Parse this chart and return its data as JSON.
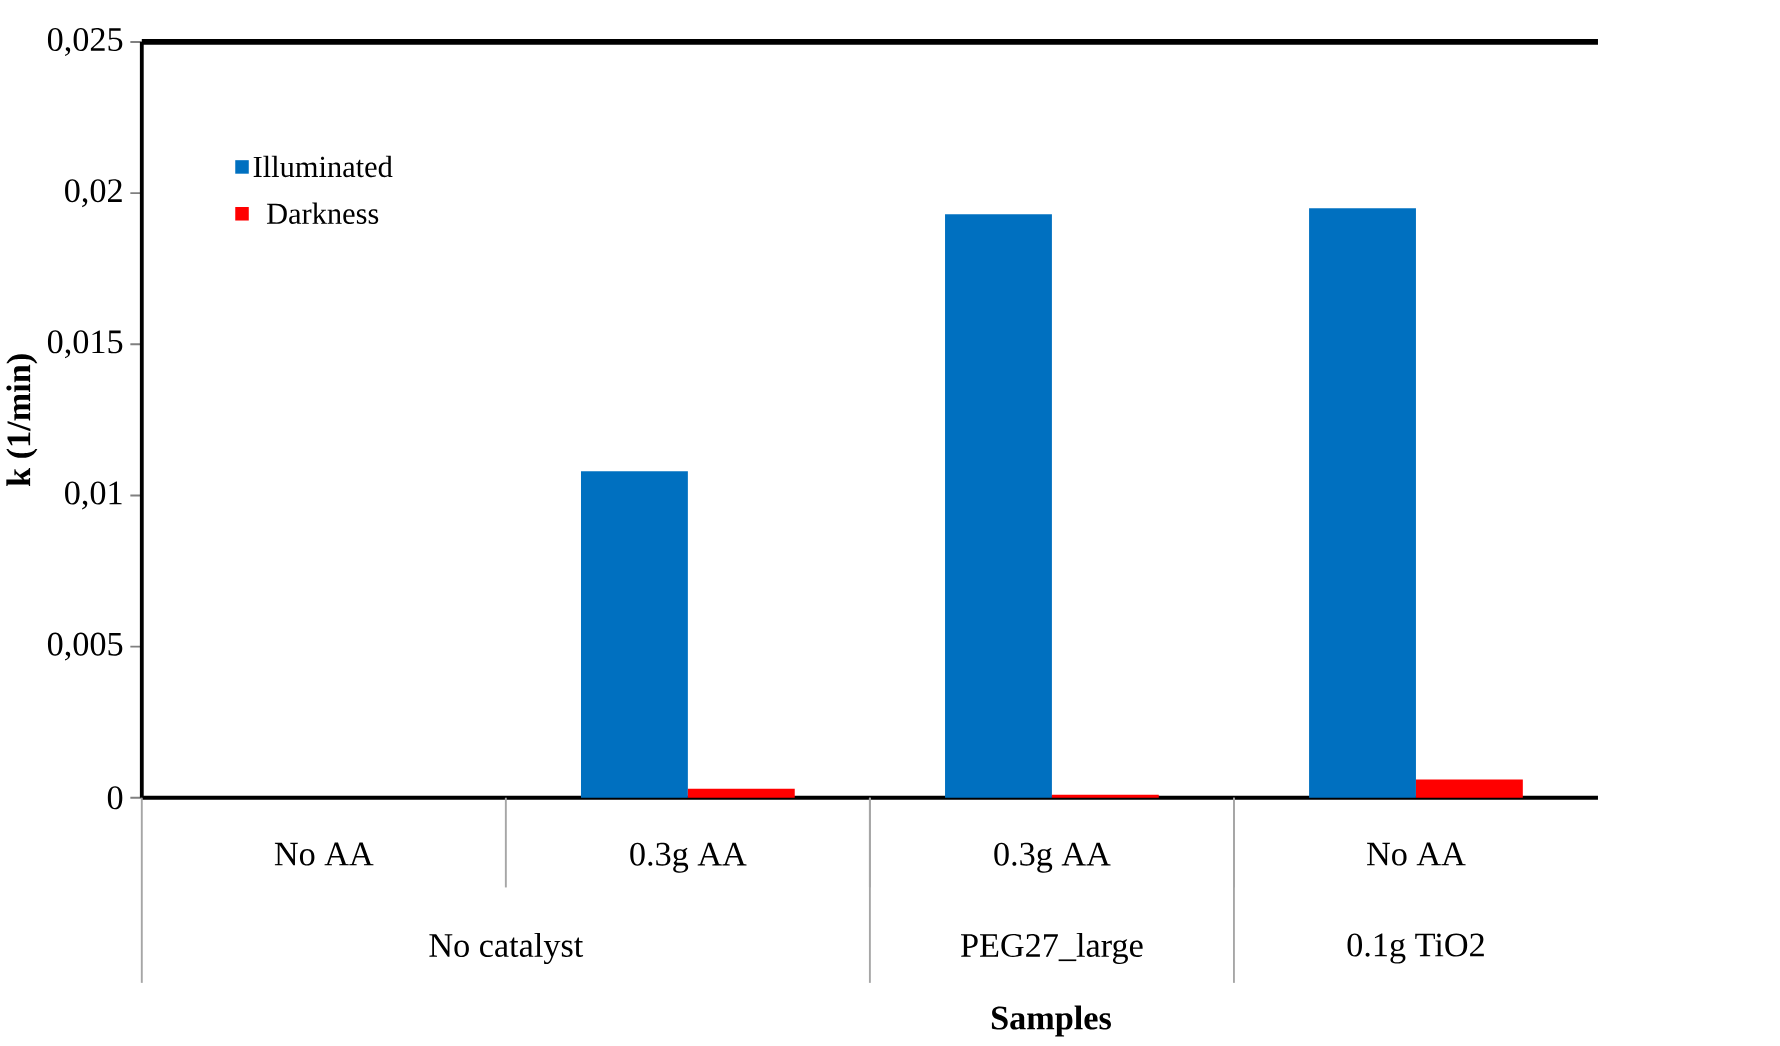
{
  "chart_data": {
    "type": "bar",
    "xlabel": "Samples",
    "ylabel": "k (1/min)",
    "categories": [
      "No AA",
      "0.3g AA",
      "0.3g AA",
      "No AA"
    ],
    "series": [
      {
        "name": "Illuminated",
        "color": "#0070c0",
        "values": [
          0,
          0.0108,
          0.0193,
          0.0195
        ]
      },
      {
        "name": "Darkness",
        "color": "#ff0000",
        "values": [
          0,
          0.0003,
          0.0001,
          0.0006
        ]
      }
    ],
    "ylim": [
      0,
      0.025
    ],
    "yticks": [
      {
        "value": 0,
        "label": "0"
      },
      {
        "value": 0.005,
        "label": "0,005"
      },
      {
        "value": 0.01,
        "label": "0,01"
      },
      {
        "value": 0.015,
        "label": "0,015"
      },
      {
        "value": 0.02,
        "label": "0,02"
      },
      {
        "value": 0.025,
        "label": "0,025"
      }
    ],
    "annotations": [
      "No catalyst",
      "PEG27_large",
      "0.1g TiO2"
    ],
    "legend": "top left"
  }
}
